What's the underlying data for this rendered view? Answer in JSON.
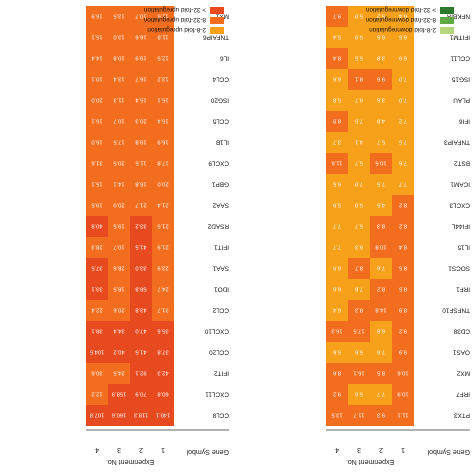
{
  "chart_data": {
    "type": "heatmap",
    "headers": {
      "gene_symbol": "Gene Symbol",
      "experiment_no": "Experiment No.",
      "columns": [
        "1",
        "2",
        "3",
        "4"
      ]
    },
    "legend": [
      {
        "label": "2-8-fold upregulation",
        "color": "#f7a11a"
      },
      {
        "label": "8-32-fold upregulation",
        "color": "#f26d1e"
      },
      {
        "label": "> 32-fold upregulation",
        "color": "#e84a1f"
      },
      {
        "label": "2-8-fold downregulation",
        "color": "#b5d67a"
      },
      {
        "label": "8-32-fold downregulation",
        "color": "#5fa944"
      },
      {
        "label": "> 32-fold downregulation",
        "color": "#2b7a2b"
      }
    ],
    "colors": {
      "up_low": "#f7a11a",
      "up_mid": "#f26d1e",
      "up_high": "#e84a1f",
      "down_low": "#b5d67a",
      "down_mid": "#5fa944",
      "down_high": "#2b7a2b"
    },
    "left_panel": {
      "genes": [
        "CCL8",
        "CXCL11",
        "IFIT2",
        "CCL20",
        "CXCL10",
        "CCL2",
        "IDO1",
        "SAA1",
        "IFIT1",
        "RSAD2",
        "SAA2",
        "GBP1",
        "CXCL9",
        "IL1B",
        "CCL5",
        "ISG20",
        "CCL4",
        "IL6",
        "TNFAIP6",
        "MX1"
      ],
      "values": [
        [
          140.1,
          118.3,
          160.6,
          107.8
        ],
        [
          60.8,
          70.9,
          158.9,
          12.2
        ],
        [
          42.3,
          92.1,
          24.5,
          30.6
        ],
        [
          37.8,
          41.5,
          40.2,
          104.5
        ],
        [
          35.6,
          47.0,
          34.4,
          38.1
        ],
        [
          31.7,
          43.8,
          20.6,
          22.4
        ],
        [
          24.7,
          58.8,
          18.5,
          33.1
        ],
        [
          23.9,
          33.0,
          28.6,
          37.5
        ],
        [
          21.9,
          41.5,
          10.7,
          28.3
        ],
        [
          21.5,
          33.2,
          19.5,
          40.8
        ],
        [
          21.4,
          21.7,
          20.0,
          19.5
        ],
        [
          20.0,
          16.8,
          14.1,
          15.1
        ],
        [
          17.8,
          11.5,
          20.5,
          31.6
        ],
        [
          16.9,
          19.8,
          17.5,
          16.0
        ],
        [
          15.4,
          20.3,
          10.7,
          16.1
        ],
        [
          15.1,
          15.4,
          11.3,
          20.0
        ],
        [
          13.2,
          16.7,
          13.4,
          10.1
        ],
        [
          12.5,
          19.9,
          10.8,
          14.4
        ],
        [
          11.8,
          16.6,
          13.0,
          15.1
        ],
        [
          11.6,
          10.7,
          13.5,
          16.9
        ]
      ]
    },
    "right_panel": {
      "genes": [
        "PTX3",
        "IRF7",
        "MX2",
        "OAS1",
        "CD38",
        "TNFSF10",
        "IRF1",
        "SOCS1",
        "IL15",
        "IFI44L",
        "CXCL3",
        "ICAM1",
        "BST2",
        "TNFAIP3",
        "IFI6",
        "PLAU",
        "ISG15",
        "CCL11",
        "IFITM1",
        "NFKBIA"
      ],
      "values": [
        [
          11.1,
          9.3,
          11.7,
          13.5
        ],
        [
          10.9,
          7.7,
          5.6,
          9.2
        ],
        [
          10.6,
          8.5,
          16.1,
          8.6
        ],
        [
          9.9,
          7.6,
          5.6,
          5.6
        ],
        [
          9.2,
          6.6,
          17.5,
          16.3
        ],
        [
          8.9,
          14.8,
          8.3,
          6.4
        ],
        [
          8.5,
          8.2,
          7.8,
          6.6
        ],
        [
          8.5,
          7.6,
          8.7,
          6.9
        ],
        [
          8.4,
          10.8,
          6.3,
          7.7
        ],
        [
          8.2,
          8.3,
          5.7,
          7.7
        ],
        [
          8.2,
          4.5,
          5.0,
          5.9
        ],
        [
          7.7,
          7.5,
          7.0,
          6.5
        ],
        [
          7.6,
          10.5,
          5.7,
          11.6
        ],
        [
          7.5,
          5.7,
          4.1,
          3.7
        ],
        [
          7.2,
          4.8,
          7.5,
          8.9
        ],
        [
          7.0,
          3.6,
          6.7,
          5.8
        ],
        [
          7.0,
          9.6,
          8.1,
          6.6
        ],
        [
          6.9,
          3.8,
          5.5,
          8.4
        ],
        [
          6.5,
          6.5,
          5.9,
          5.4
        ],
        [
          6.4,
          5.2,
          5.0,
          9.7
        ]
      ]
    }
  }
}
